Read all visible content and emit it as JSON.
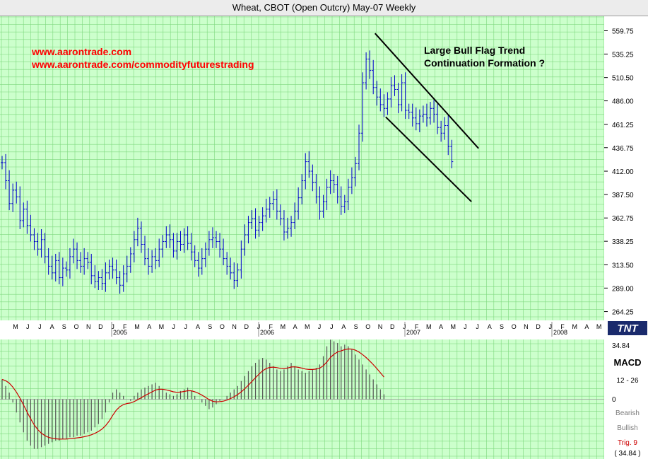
{
  "title": "Wheat, CBOT (Open Outcry) May-07  Weekly",
  "links": [
    "www.aarontrade.com",
    "www.aarontrade.com/commodityfuturestrading"
  ],
  "annotation": [
    "Large Bull Flag Trend",
    "Continuation Formation ?"
  ],
  "logo": "TNT",
  "colors": {
    "plot_bg": "#ccffcc",
    "grid": "#7ed87e",
    "bars": "#0000cc",
    "links": "#ff0000",
    "macd_signal": "#cc0000",
    "histogram": "#555555",
    "trendline": "#000000"
  },
  "price_panel": {
    "y_ticks": [
      "559.75",
      "535.25",
      "510.50",
      "486.00",
      "461.25",
      "436.75",
      "412.00",
      "387.50",
      "362.75",
      "338.25",
      "313.50",
      "289.00",
      "264.25"
    ],
    "month_labels": [
      "M",
      "J",
      "J",
      "A",
      "S",
      "O",
      "N",
      "D",
      "J",
      "F",
      "M",
      "A",
      "M",
      "J",
      "J",
      "A",
      "S",
      "O",
      "N",
      "D",
      "J",
      "F",
      "M",
      "A",
      "M",
      "J",
      "J",
      "A",
      "S",
      "O",
      "N",
      "D",
      "J",
      "F",
      "M",
      "A",
      "M",
      "J",
      "J",
      "A",
      "S",
      "O",
      "N",
      "D",
      "J",
      "F",
      "M",
      "A",
      "M"
    ],
    "year_labels": [
      "2005",
      "2006",
      "2007",
      "2008"
    ]
  },
  "macd_panel": {
    "label": "MACD",
    "params": "12 - 26",
    "zero": "0",
    "bearish": "Bearish",
    "bullish": "Bullish",
    "trig": "Trig. 9",
    "top_value": "34.84",
    "bottom_value": "( 34.84 )"
  },
  "chart_data": {
    "type": "ohlc",
    "frequency": "weekly",
    "x": "week index from May 2004",
    "close": [
      421,
      402,
      378,
      392,
      385,
      360,
      372,
      355,
      345,
      338,
      330,
      340,
      322,
      312,
      305,
      318,
      300,
      310,
      308,
      322,
      330,
      318,
      312,
      320,
      316,
      302,
      296,
      300,
      294,
      305,
      312,
      308,
      300,
      292,
      304,
      312,
      325,
      340,
      352,
      335,
      320,
      312,
      322,
      318,
      330,
      338,
      345,
      340,
      328,
      338,
      335,
      345,
      336,
      327,
      318,
      310,
      320,
      330,
      340,
      342,
      338,
      330,
      320,
      312,
      305,
      297,
      308,
      330,
      345,
      358,
      362,
      350,
      358,
      365,
      372,
      378,
      382,
      370,
      362,
      348,
      352,
      358,
      370,
      384,
      402,
      422,
      412,
      400,
      385,
      370,
      380,
      395,
      402,
      398,
      385,
      375,
      380,
      395,
      405,
      420,
      452,
      505,
      530,
      518,
      500,
      490,
      482,
      478,
      488,
      502,
      498,
      482,
      505,
      476,
      474,
      468,
      462,
      470,
      472,
      468,
      478,
      472,
      458,
      452,
      460,
      438,
      422
    ],
    "ylim": [
      255,
      575
    ],
    "macd": [
      12,
      8,
      4,
      -2,
      -8,
      -14,
      -20,
      -25,
      -28,
      -30,
      -30,
      -29,
      -28,
      -27,
      -26,
      -25,
      -25,
      -24,
      -24,
      -23,
      -23,
      -22,
      -22,
      -21,
      -20,
      -19,
      -17,
      -15,
      -12,
      -8,
      -2,
      4,
      6,
      4,
      2,
      0,
      -1,
      2,
      4,
      6,
      7,
      8,
      9,
      10,
      8,
      6,
      4,
      3,
      2,
      3,
      5,
      6,
      7,
      5,
      2,
      0,
      -2,
      -4,
      -6,
      -5,
      -3,
      -1,
      0,
      2,
      4,
      6,
      8,
      11,
      14,
      17,
      20,
      22,
      24,
      25,
      24,
      22,
      20,
      18,
      17,
      18,
      20,
      22,
      20,
      18,
      17,
      16,
      17,
      18,
      19,
      21,
      26,
      32,
      36,
      35,
      34,
      32,
      33,
      32,
      30,
      27,
      24,
      21,
      18,
      15,
      12,
      9,
      6,
      3
    ],
    "macd_ylim": [
      -34.84,
      34.84
    ]
  }
}
